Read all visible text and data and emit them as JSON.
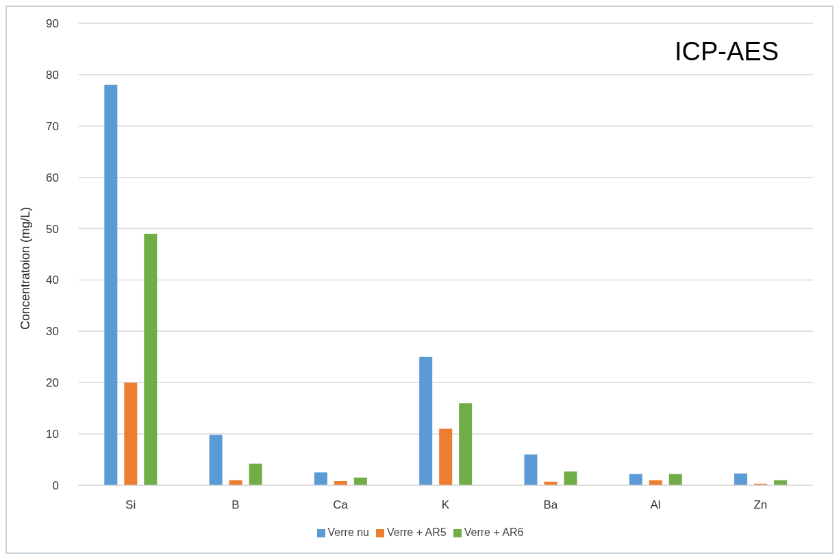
{
  "chart_data": {
    "type": "bar",
    "ylabel": "Concentratoion (mg/L)",
    "annotations": [
      "ICP-AES"
    ],
    "categories": [
      "Si",
      "B",
      "Ca",
      "K",
      "Ba",
      "Al",
      "Zn"
    ],
    "series": [
      {
        "name": "Verre nu",
        "color": "#5b9bd5",
        "values": [
          78,
          9.8,
          2.5,
          25,
          6.0,
          2.2,
          2.3
        ]
      },
      {
        "name": "Verre + AR5",
        "color": "#ed7d31",
        "values": [
          20,
          1.0,
          0.8,
          11,
          0.7,
          1.0,
          0.3
        ]
      },
      {
        "name": "Verre + AR6",
        "color": "#70ad47",
        "values": [
          49,
          4.2,
          1.5,
          16,
          2.7,
          2.2,
          1.0
        ]
      }
    ],
    "ylim": [
      0,
      90
    ],
    "yticks": [
      0,
      10,
      20,
      30,
      40,
      50,
      60,
      70,
      80,
      90
    ],
    "grid": "y",
    "legend": "bottom"
  }
}
